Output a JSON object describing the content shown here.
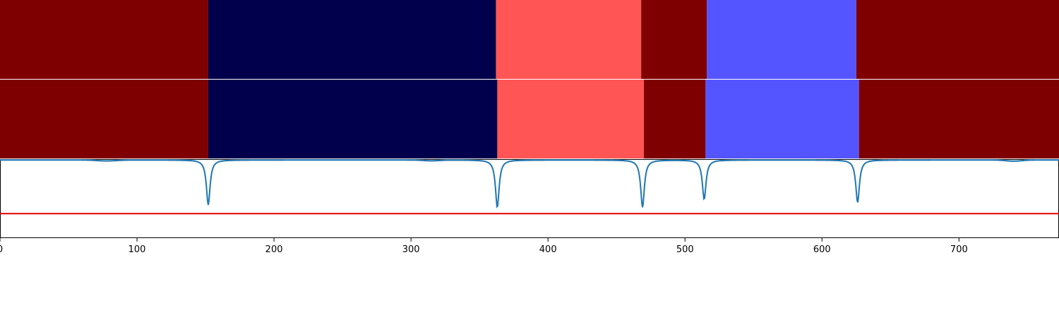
{
  "chart_data": {
    "type": "segment-timeline",
    "xlim": [
      0,
      773
    ],
    "x_ticks": [
      0,
      100,
      200,
      300,
      400,
      500,
      600,
      700
    ],
    "x_tick_labels": [
      "0",
      "100",
      "200",
      "300",
      "400",
      "500",
      "600",
      "700"
    ],
    "rows": [
      {
        "segments": [
          {
            "start": 0,
            "end": 152,
            "color": "#7f0000"
          },
          {
            "start": 152,
            "end": 362,
            "color": "#00004c"
          },
          {
            "start": 362,
            "end": 468,
            "color": "#ff5555"
          },
          {
            "start": 468,
            "end": 516,
            "color": "#7f0000"
          },
          {
            "start": 516,
            "end": 625,
            "color": "#5555ff"
          },
          {
            "start": 625,
            "end": 773,
            "color": "#7f0000"
          }
        ]
      },
      {
        "segments": [
          {
            "start": 0,
            "end": 152,
            "color": "#7f0000"
          },
          {
            "start": 152,
            "end": 363,
            "color": "#00004c"
          },
          {
            "start": 363,
            "end": 470,
            "color": "#ff5555"
          },
          {
            "start": 470,
            "end": 515,
            "color": "#7f0000"
          },
          {
            "start": 515,
            "end": 627,
            "color": "#5555ff"
          },
          {
            "start": 627,
            "end": 773,
            "color": "#7f0000"
          }
        ]
      }
    ],
    "signal": {
      "color": "#1f77b4",
      "ylim": [
        0,
        1
      ],
      "baseline": 0.99,
      "dips": [
        {
          "x": 152,
          "depth": 0.57
        },
        {
          "x": 363,
          "depth": 0.6
        },
        {
          "x": 469,
          "depth": 0.6
        },
        {
          "x": 514,
          "depth": 0.5
        },
        {
          "x": 626,
          "depth": 0.54
        }
      ],
      "threshold": 0.31,
      "threshold_color": "#e00000"
    }
  }
}
